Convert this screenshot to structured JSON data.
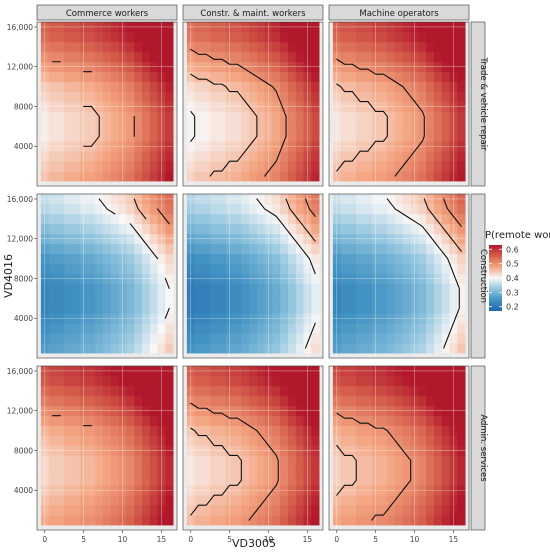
{
  "chart_data": {
    "type": "heatmap",
    "title": "",
    "xlabel": "VD3005",
    "ylabel": "VD4016",
    "x_ticks": [
      0,
      5,
      10,
      15
    ],
    "x_tick_labels": [
      "0",
      "5",
      "10",
      "15"
    ],
    "xlim": [
      -1,
      17
    ],
    "y_ticks": [
      4000,
      8000,
      12000,
      16000
    ],
    "y_tick_labels": [
      "4000",
      "8000",
      "12,000",
      "16,000"
    ],
    "ylim": [
      0,
      16500
    ],
    "column_facets": [
      "Commerce workers",
      "Constr. & maint. workers",
      "Machine operators"
    ],
    "row_facets": [
      "Trade & vehicle repair",
      "Construction",
      "Admin. services"
    ],
    "grid": true,
    "legend": {
      "title": "P(remote work)",
      "position": "right",
      "ticks": [
        0.2,
        0.3,
        0.4,
        0.5,
        0.6
      ],
      "tick_labels": [
        "0.2",
        "0.3",
        "0.4",
        "0.5",
        "0.6"
      ],
      "range": [
        0.17,
        0.63
      ],
      "colors": [
        "#2166ac",
        "#4393c3",
        "#92c5de",
        "#f7f7f7",
        "#f4a582",
        "#d6604d",
        "#b2182b"
      ]
    },
    "x_bins": [
      0,
      1,
      2,
      3,
      4,
      5,
      6,
      7,
      8,
      9,
      10,
      11,
      12,
      13,
      14,
      15,
      16
    ],
    "y_bins": [
      1000,
      2000,
      3000,
      4000,
      5000,
      6000,
      7000,
      8000,
      9000,
      10000,
      11000,
      12000,
      13000,
      14000,
      15000,
      16000
    ],
    "row_baseline": [
      0.43,
      0.24,
      0.45
    ],
    "column_shift": [
      0.0,
      -0.015,
      0.005
    ],
    "x_effect": [
      0.0,
      0.01,
      0.01,
      0.02,
      0.02,
      0.03,
      0.03,
      0.04,
      0.05,
      0.06,
      0.07,
      0.08,
      0.1,
      0.12,
      0.14,
      0.16,
      0.18
    ],
    "y_effect": [
      0.02,
      0.01,
      0.0,
      -0.01,
      -0.02,
      -0.02,
      -0.02,
      -0.01,
      0.0,
      0.01,
      0.03,
      0.05,
      0.07,
      0.09,
      0.11,
      0.12
    ],
    "contour_levels": [
      0.4,
      0.45,
      0.5
    ]
  }
}
